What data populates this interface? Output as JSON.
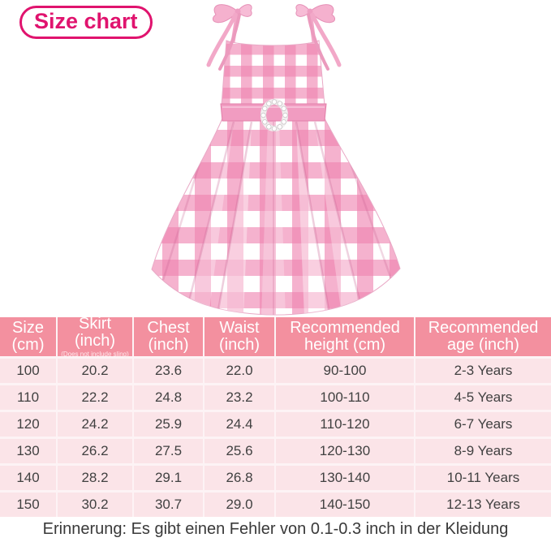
{
  "header": {
    "badge": "Size chart"
  },
  "colors": {
    "accent": "#e0136e",
    "table_header_bg": "#f3909f",
    "table_row_bg": "#fbe4e8",
    "divider": "#fdf3f5",
    "body_text": "#414141",
    "gingham_pink": "#ee82b0"
  },
  "table": {
    "columns": [
      {
        "line1": "Size",
        "line2": "(cm)",
        "note": ""
      },
      {
        "line1": "Skirt",
        "line2": "(inch)",
        "note": "(Does not include sling)"
      },
      {
        "line1": "Chest",
        "line2": "(inch)",
        "note": ""
      },
      {
        "line1": "Waist",
        "line2": "(inch)",
        "note": ""
      },
      {
        "line1": "Recommended",
        "line2": "height (cm)",
        "note": ""
      },
      {
        "line1": "Recommended",
        "line2": "age (inch)",
        "note": ""
      }
    ],
    "rows": [
      [
        "100",
        "20.2",
        "23.6",
        "22.0",
        "90-100",
        "2-3 Years"
      ],
      [
        "110",
        "22.2",
        "24.8",
        "23.2",
        "100-110",
        "4-5 Years"
      ],
      [
        "120",
        "24.2",
        "25.9",
        "24.4",
        "110-120",
        "6-7 Years"
      ],
      [
        "130",
        "26.2",
        "27.5",
        "25.6",
        "120-130",
        "8-9 Years"
      ],
      [
        "140",
        "28.2",
        "29.1",
        "26.8",
        "130-140",
        "10-11 Years"
      ],
      [
        "150",
        "30.2",
        "30.7",
        "29.0",
        "140-150",
        "12-13 Years"
      ]
    ]
  },
  "footer": {
    "note": "Erinnerung: Es gibt einen Fehler von 0.1-0.3 inch in der Kleidung"
  }
}
